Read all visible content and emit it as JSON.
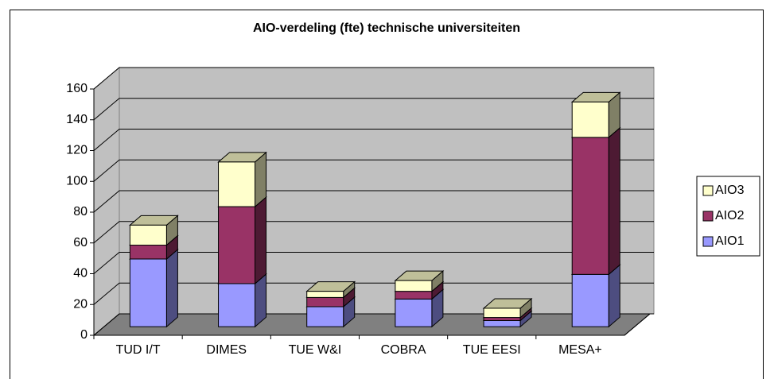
{
  "chart_data": {
    "type": "bar3d_stacked",
    "title": "AIO-verdeling (fte) technische universiteiten",
    "categories": [
      "TUD I/T",
      "DIMES",
      "TUE W&I",
      "COBRA",
      "TUE EESI",
      "MESA+"
    ],
    "series": [
      {
        "name": "AIO1",
        "color": "#9999ff",
        "values": [
          44,
          28,
          13,
          18,
          4,
          34
        ]
      },
      {
        "name": "AIO2",
        "color": "#993366",
        "values": [
          9,
          50,
          6,
          5,
          2,
          89
        ]
      },
      {
        "name": "AIO3",
        "color": "#ffffcc",
        "values": [
          13,
          29,
          4,
          7,
          6,
          23
        ]
      }
    ],
    "ylim": [
      0,
      160
    ],
    "yticks": [
      0,
      20,
      40,
      60,
      80,
      100,
      120,
      140,
      160
    ],
    "grid": true,
    "legend": "right"
  }
}
